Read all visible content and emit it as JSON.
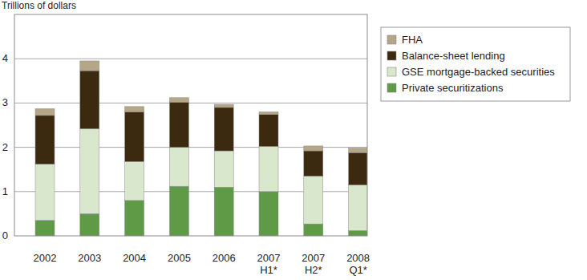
{
  "chart_data": {
    "type": "bar",
    "stacked": true,
    "y_label": "Trillions of dollars",
    "categories": [
      "2002",
      "2003",
      "2004",
      "2005",
      "2006",
      "2007 H1*",
      "2007 H2*",
      "2008 Q1*"
    ],
    "series": [
      {
        "name": "Private securitizations",
        "color": "#5f9b46",
        "values": [
          0.35,
          0.5,
          0.8,
          1.12,
          1.1,
          1.0,
          0.27,
          0.12
        ]
      },
      {
        "name": "GSE mortgage-backed securities",
        "color": "#d9e7cd",
        "values": [
          1.27,
          1.92,
          0.88,
          0.88,
          0.82,
          1.02,
          1.08,
          1.03
        ]
      },
      {
        "name": "Balance-sheet lending",
        "color": "#3b2a0f",
        "values": [
          1.1,
          1.31,
          1.12,
          1.02,
          0.98,
          0.72,
          0.57,
          0.73
        ]
      },
      {
        "name": "FHA",
        "color": "#b6a688",
        "values": [
          0.15,
          0.22,
          0.12,
          0.1,
          0.07,
          0.06,
          0.11,
          0.1
        ]
      }
    ],
    "ylim": [
      0,
      5
    ],
    "yticks": [
      0,
      1,
      2,
      3,
      4
    ],
    "grid": true,
    "legend": "top-right"
  }
}
